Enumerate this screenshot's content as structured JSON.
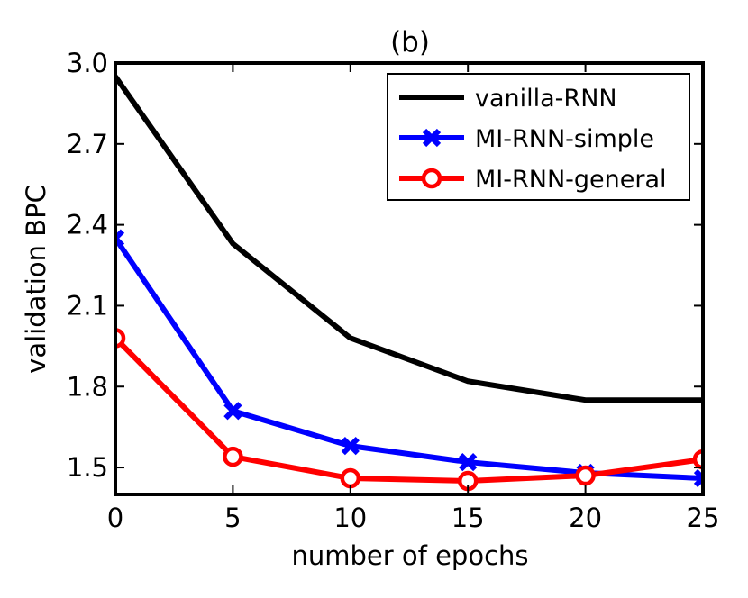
{
  "chart_data": {
    "type": "line",
    "title": "(b)",
    "xlabel": "number of epochs",
    "ylabel": "validation BPC",
    "xlim": [
      0,
      25
    ],
    "ylim": [
      1.4,
      3.0
    ],
    "x": [
      0,
      5,
      10,
      15,
      20,
      25
    ],
    "xticks": [
      "0",
      "5",
      "10",
      "15",
      "20",
      "25"
    ],
    "yticks": [
      "1.5",
      "1.8",
      "2.1",
      "2.4",
      "2.7",
      "3.0"
    ],
    "grid": false,
    "legend_position": "top-right",
    "series": [
      {
        "name": "vanilla-RNN",
        "color": "#000000",
        "marker": "none",
        "values": [
          2.95,
          2.33,
          1.98,
          1.82,
          1.75,
          1.75
        ]
      },
      {
        "name": "MI-RNN-simple",
        "color": "#0000ff",
        "marker": "x",
        "values": [
          2.35,
          1.71,
          1.58,
          1.52,
          1.48,
          1.46
        ]
      },
      {
        "name": "MI-RNN-general",
        "color": "#ff0000",
        "marker": "circle",
        "values": [
          1.98,
          1.54,
          1.46,
          1.45,
          1.47,
          1.53
        ]
      }
    ]
  }
}
